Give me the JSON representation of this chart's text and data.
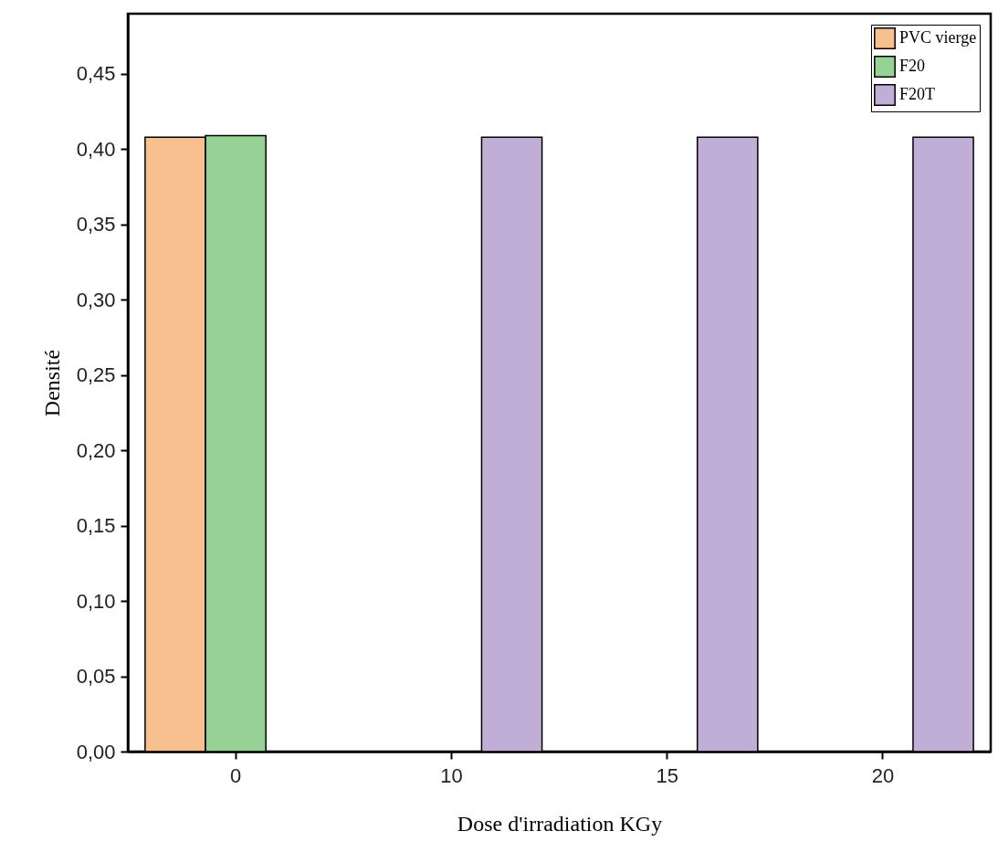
{
  "chart_data": {
    "type": "bar",
    "xlabel": "Dose d'irradiation KGy",
    "ylabel": "Densité",
    "categories": [
      "0",
      "10",
      "15",
      "20"
    ],
    "series": [
      {
        "name": "PVC vierge",
        "color": "#f9c08f",
        "values": [
          0.408,
          null,
          null,
          null
        ]
      },
      {
        "name": "F20",
        "color": "#96d296",
        "values": [
          0.409,
          null,
          null,
          null
        ]
      },
      {
        "name": "F20T",
        "color": "#c0aed6",
        "values": [
          null,
          0.408,
          0.408,
          0.408
        ]
      }
    ],
    "ylim": [
      0,
      0.49
    ],
    "yticks": [
      {
        "value": 0,
        "label": "0,00"
      },
      {
        "value": 0.05,
        "label": "0,05"
      },
      {
        "value": 0.1,
        "label": "0,10"
      },
      {
        "value": 0.15,
        "label": "0,15"
      },
      {
        "value": 0.2,
        "label": "0,20"
      },
      {
        "value": 0.25,
        "label": "0,25"
      },
      {
        "value": 0.3,
        "label": "0,30"
      },
      {
        "value": 0.35,
        "label": "0,35"
      },
      {
        "value": 0.4,
        "label": "0,40"
      },
      {
        "value": 0.45,
        "label": "0,45"
      }
    ],
    "legend": "top right"
  }
}
